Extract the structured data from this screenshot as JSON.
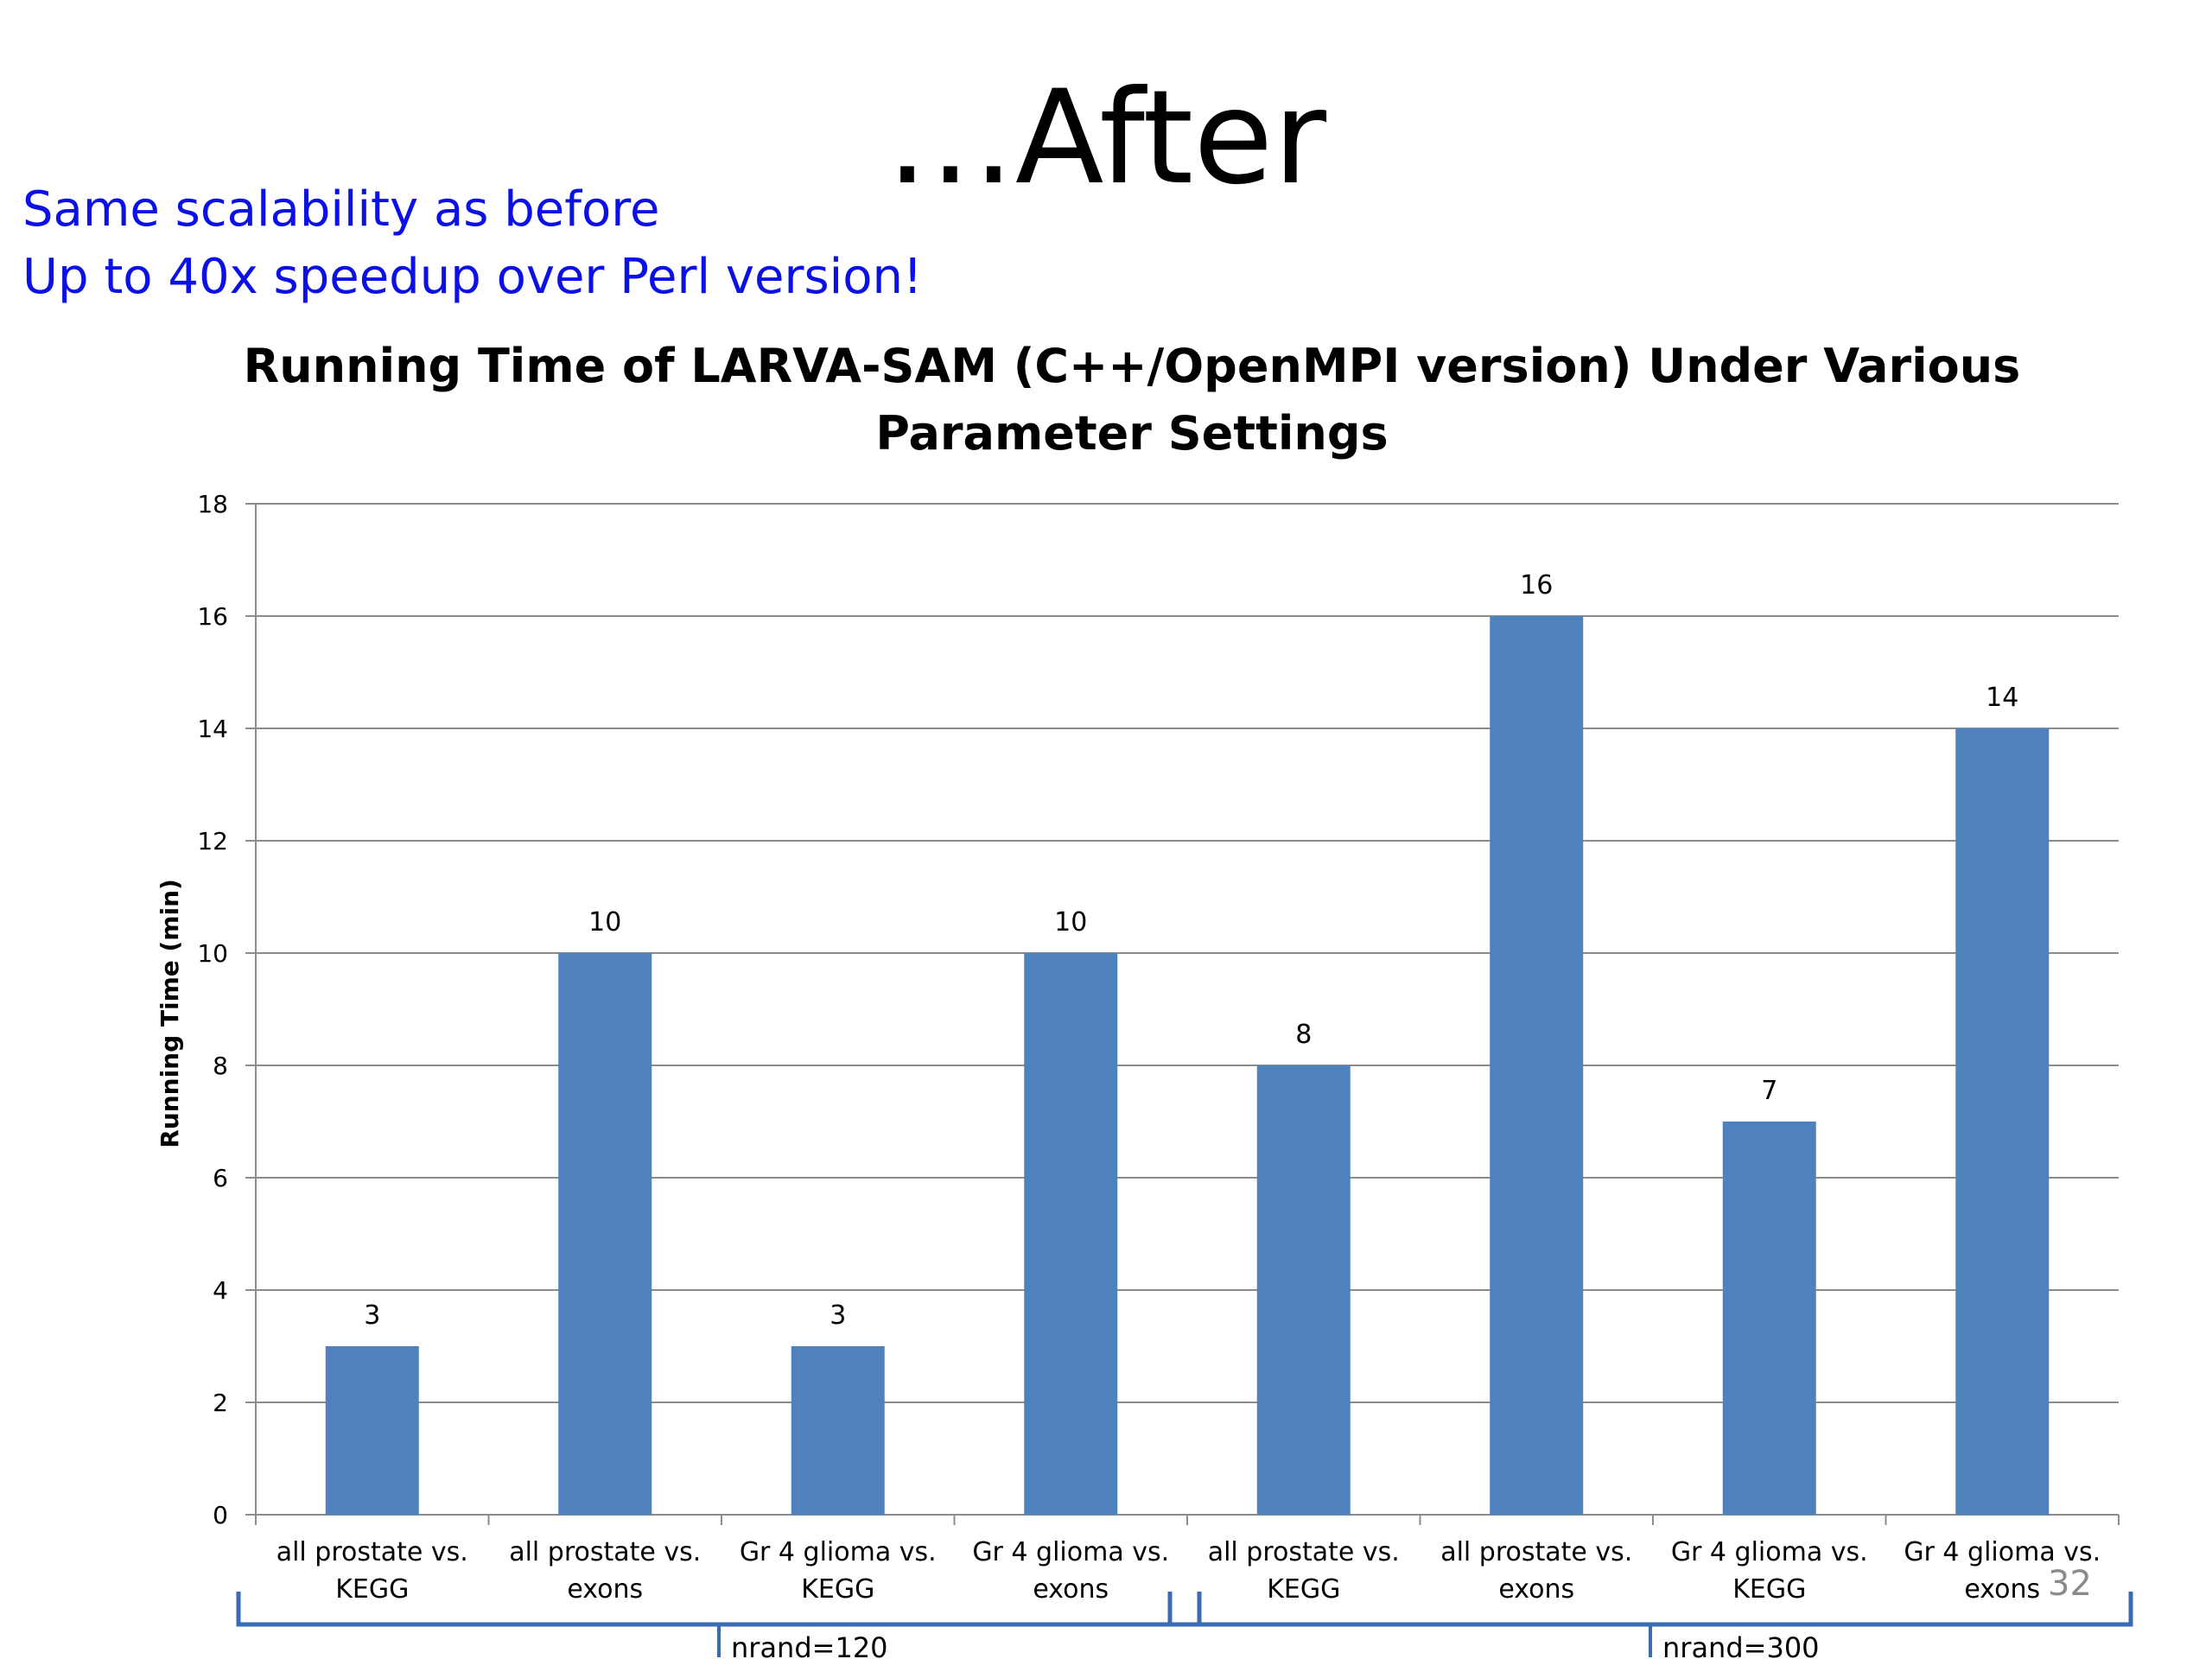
{
  "slide": {
    "title": "…After",
    "subtitle_lines": [
      "Same scalability as before",
      "Up to 40x speedup over Perl version!"
    ],
    "page_number": "32",
    "accent_color": "#0a10e6"
  },
  "chart_data": {
    "type": "bar",
    "title_lines": [
      "Running Time of LARVA-SAM (C++/OpenMPI version) Under Various",
      "Parameter Settings"
    ],
    "xlabel": "",
    "ylabel": "Running Time (min)",
    "ylim": [
      0,
      18
    ],
    "yticks": [
      0,
      2,
      4,
      6,
      8,
      10,
      12,
      14,
      16,
      18
    ],
    "grid": true,
    "bar_color": "#4f81bd",
    "categories": [
      [
        "all prostate vs.",
        "KEGG"
      ],
      [
        "all prostate vs.",
        "exons"
      ],
      [
        "Gr 4 glioma vs.",
        "KEGG"
      ],
      [
        "Gr 4 glioma vs.",
        "exons"
      ],
      [
        "all prostate vs.",
        "KEGG"
      ],
      [
        "all prostate vs.",
        "exons"
      ],
      [
        "Gr 4 glioma vs.",
        "KEGG"
      ],
      [
        "Gr 4 glioma vs.",
        "exons"
      ]
    ],
    "values": [
      3,
      10,
      3,
      10,
      8,
      16,
      7,
      14
    ],
    "data_labels": [
      "3",
      "10",
      "3",
      "10",
      "8",
      "16",
      "7",
      "14"
    ],
    "groups": [
      {
        "label": "nrand=120",
        "from": 0,
        "to": 3
      },
      {
        "label": "nrand=300",
        "from": 4,
        "to": 7
      }
    ],
    "group_bracket_color": "#3b6bb3"
  }
}
